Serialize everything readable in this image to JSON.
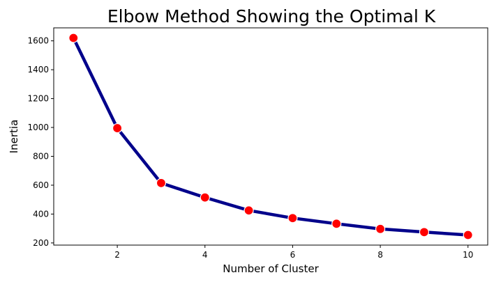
{
  "chart_data": {
    "type": "line",
    "title": "Elbow Method Showing the Optimal K",
    "xlabel": "Number of Cluster",
    "ylabel": "Inertia",
    "x": [
      1,
      2,
      3,
      4,
      5,
      6,
      7,
      8,
      9,
      10
    ],
    "series": [
      {
        "values": [
          1620,
          995,
          615,
          515,
          425,
          372,
          333,
          297,
          275,
          255
        ],
        "line_color": "#00008b",
        "marker_color": "#ff0000",
        "marker_edge_color": "#ffffff"
      }
    ],
    "xlim": [
      0.55,
      10.45
    ],
    "ylim": [
      185,
      1690
    ],
    "xticks": [
      2,
      4,
      6,
      8,
      10
    ],
    "yticks": [
      200,
      400,
      600,
      800,
      1000,
      1200,
      1400,
      1600
    ],
    "grid": false,
    "legend": "none"
  }
}
